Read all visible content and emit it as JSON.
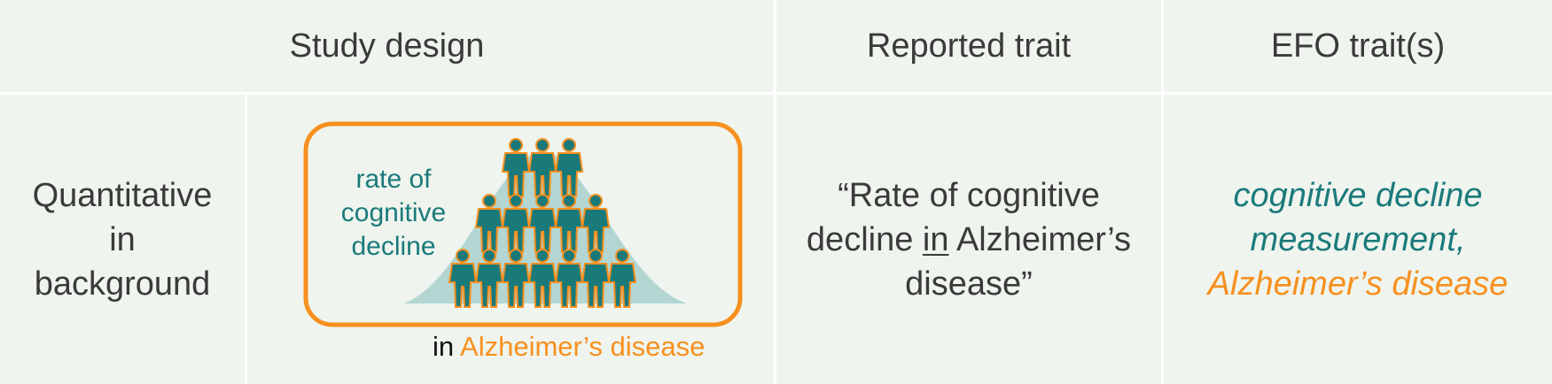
{
  "header": {
    "study_design": "Study design",
    "reported_trait": "Reported trait",
    "efo_traits": "EFO trait(s)"
  },
  "row": {
    "design_type": [
      "Quantitative",
      "in",
      "background"
    ],
    "diagram": {
      "trait_label": [
        "rate of",
        "cognitive",
        "decline"
      ],
      "caption_prefix": "in",
      "caption_disease": "Alzheimer’s disease"
    },
    "reported_trait": {
      "line1": "“Rate of cognitive",
      "line2_pre": "decline ",
      "line2_underlined": "in",
      "line2_post": " Alzheimer’s",
      "line3": "disease”"
    },
    "efo": {
      "line1": "cognitive decline",
      "line2": "measurement,",
      "line3": "Alzheimer’s disease"
    }
  },
  "colors": {
    "cell_bg": "#eff4ee",
    "teal": "#1a7a7a",
    "orange": "#f7901e",
    "curve_fill": "#b3d6d3"
  },
  "icons": {
    "person": "person-icon"
  }
}
